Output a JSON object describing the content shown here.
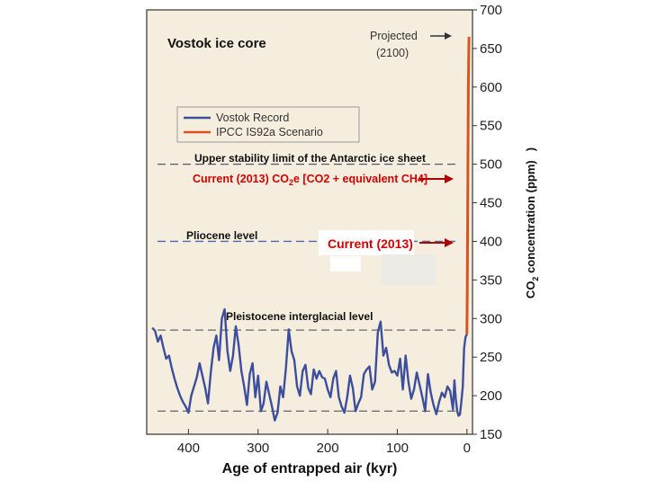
{
  "chart_data": {
    "type": "line",
    "title": "Vostok ice core",
    "xlabel": "Age of entrapped air (kyr)",
    "ylabel_main": "CO",
    "ylabel_sub": "2",
    "ylabel_rest": " concentration (ppm)",
    "ylabel_paren": ")",
    "xlim": [
      460,
      -8
    ],
    "ylim": [
      150,
      700
    ],
    "x_ticks": [
      400,
      300,
      200,
      100,
      0
    ],
    "y_ticks": [
      150,
      200,
      250,
      300,
      350,
      400,
      450,
      500,
      550,
      600,
      650,
      700
    ],
    "legend": {
      "placement": "upper-left",
      "entries": [
        {
          "label": "Vostok Record",
          "color": "#3d4f9c"
        },
        {
          "label": "IPCC IS92a Scenario",
          "color": "#d9531e"
        }
      ]
    },
    "series": [
      {
        "name": "Vostok Record",
        "color": "#3d4f9c",
        "x": [
          452,
          448,
          444,
          440,
          436,
          432,
          428,
          424,
          420,
          416,
          412,
          408,
          404,
          400,
          396,
          392,
          388,
          384,
          380,
          376,
          372,
          368,
          364,
          360,
          356,
          352,
          348,
          344,
          340,
          336,
          332,
          328,
          324,
          320,
          316,
          312,
          308,
          304,
          300,
          296,
          292,
          288,
          284,
          280,
          276,
          272,
          268,
          264,
          260,
          256,
          252,
          248,
          244,
          240,
          236,
          232,
          228,
          224,
          220,
          216,
          212,
          208,
          204,
          200,
          196,
          192,
          188,
          184,
          180,
          176,
          172,
          168,
          164,
          160,
          156,
          152,
          148,
          144,
          140,
          136,
          132,
          128,
          124,
          120,
          116,
          112,
          108,
          104,
          100,
          96,
          92,
          88,
          84,
          80,
          76,
          72,
          68,
          64,
          60,
          56,
          52,
          48,
          44,
          40,
          36,
          32,
          28,
          24,
          20,
          18,
          16,
          14,
          12,
          10,
          8,
          6,
          4,
          2,
          0
        ],
        "y": [
          288,
          284,
          270,
          278,
          262,
          248,
          252,
          236,
          222,
          210,
          200,
          192,
          186,
          178,
          200,
          212,
          224,
          242,
          226,
          210,
          190,
          230,
          262,
          278,
          246,
          300,
          312,
          258,
          232,
          252,
          290,
          266,
          232,
          212,
          188,
          228,
          242,
          198,
          226,
          180,
          190,
          218,
          202,
          186,
          168,
          178,
          212,
          198,
          236,
          286,
          258,
          246,
          212,
          200,
          232,
          240,
          210,
          202,
          234,
          222,
          232,
          224,
          222,
          208,
          198,
          222,
          232,
          198,
          186,
          178,
          198,
          226,
          210,
          180,
          190,
          198,
          228,
          234,
          238,
          208,
          218,
          282,
          296,
          252,
          262,
          240,
          230,
          232,
          226,
          248,
          208,
          252,
          218,
          196,
          208,
          230,
          214,
          198,
          180,
          228,
          204,
          188,
          176,
          192,
          204,
          198,
          212,
          206,
          182,
          220,
          196,
          180,
          174,
          176,
          192,
          212,
          262,
          276,
          280
        ]
      },
      {
        "name": "IPCC IS92a Scenario",
        "color": "#d9531e",
        "x": [
          0,
          -0.5,
          -1,
          -1.5,
          -2,
          -3
        ],
        "y": [
          280,
          340,
          420,
          520,
          600,
          665
        ]
      }
    ],
    "reference_lines": [
      {
        "label": "Upper stability limit of the Antarctic ice sheet",
        "value": 500,
        "color": "#555577"
      },
      {
        "label": "Pliocene level",
        "value": 400,
        "color": "#4a6ab0"
      },
      {
        "label": "Pleistocene interglacial level",
        "value": 285,
        "color": "#666666"
      },
      {
        "label": "",
        "value": 180,
        "color": "#666666"
      }
    ],
    "annotations": {
      "projected_line1": "Projected",
      "projected_line2": "(2100)",
      "current_co2e_prefix": "Current (2013) CO",
      "current_co2e_sub": "2",
      "current_co2e_suffix": "e  [CO2 + equivalent CH4]",
      "current_2013": "Current (2013)",
      "co2e_value": 480,
      "current_value": 400
    }
  }
}
